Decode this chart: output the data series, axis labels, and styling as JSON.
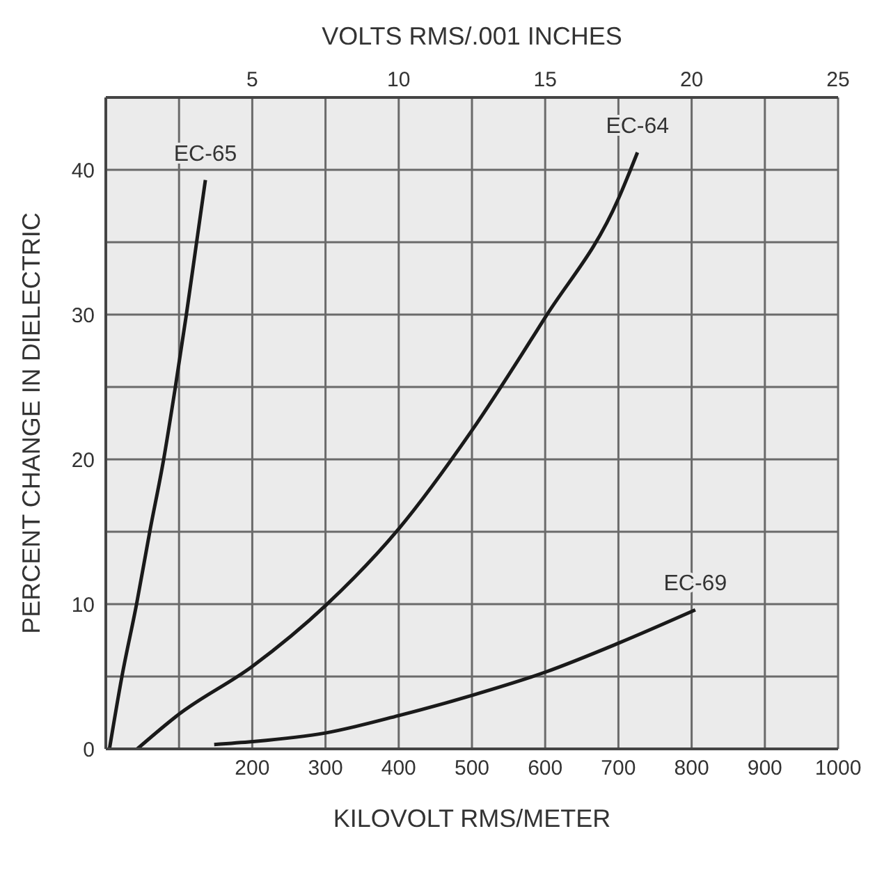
{
  "chart_data": {
    "type": "line",
    "xlabel": "KILOVOLT RMS/METER",
    "x2label": "VOLTS RMS/.001 INCHES",
    "ylabel": "PERCENT CHANGE IN DIELECTRIC",
    "xlim": [
      0,
      1000
    ],
    "xticks": [
      {
        "value": 100,
        "label": null
      },
      200,
      300,
      400,
      500,
      600,
      700,
      800,
      900,
      1000
    ],
    "x2lim": [
      0,
      25
    ],
    "x2ticks": [
      5,
      10,
      15,
      20,
      25
    ],
    "ylim": [
      0,
      45
    ],
    "yticks": [
      0,
      {
        "value": 5,
        "label": null
      },
      10,
      {
        "value": 15,
        "label": null
      },
      20,
      {
        "value": 25,
        "label": null
      },
      30,
      {
        "value": 35,
        "label": null
      },
      40,
      {
        "value": 45,
        "label": null
      }
    ],
    "grid": true,
    "legend": false,
    "marker": "none",
    "line_style": "solid",
    "series": [
      {
        "name": "EC-65",
        "color": "#1a1a1a",
        "x": [
          5,
          22,
          42,
          60,
          79,
          95,
          110,
          124,
          136
        ],
        "values": [
          0,
          5,
          10,
          15,
          20,
          25,
          30,
          35,
          39.3
        ]
      },
      {
        "name": "EC-64",
        "color": "#1a1a1a",
        "x": [
          43,
          100,
          200,
          300,
          400,
          500,
          600,
          700,
          726
        ],
        "values": [
          0,
          2.4,
          5.7,
          9.9,
          15.2,
          22,
          29.8,
          38,
          41.2
        ]
      },
      {
        "name": "EC-69",
        "color": "#1a1a1a",
        "x": [
          148,
          200,
          300,
          400,
          500,
          600,
          700,
          805
        ],
        "values": [
          0.3,
          0.5,
          1.1,
          2.3,
          3.7,
          5.3,
          7.3,
          9.6
        ]
      }
    ]
  }
}
